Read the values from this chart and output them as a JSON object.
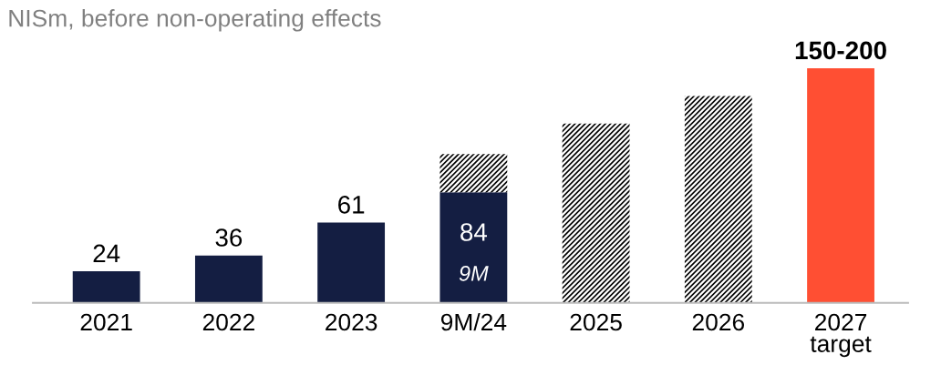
{
  "chart_data": {
    "type": "bar",
    "subtitle": "NISm, before non-operating effects",
    "stacked": true,
    "categories": [
      "2021",
      "2022",
      "2023",
      "9M/24",
      "2025",
      "2026",
      "2027\ntarget"
    ],
    "series": [
      {
        "color": "#141e42",
        "values": [
          24,
          36,
          61,
          84,
          null,
          null,
          null
        ],
        "value_labels": [
          "24",
          "36",
          "61",
          "84",
          null,
          null,
          null
        ]
      },
      {
        "color": "#000000",
        "values": [
          null,
          null,
          null,
          29,
          136,
          157,
          null
        ]
      },
      {
        "color": "#ff4f33",
        "values": [
          null,
          null,
          null,
          null,
          null,
          null,
          178
        ],
        "value_labels": [
          null,
          null,
          null,
          null,
          null,
          null,
          "150-200"
        ]
      }
    ],
    "annotations": [
      "9M"
    ],
    "grid": false,
    "legend": false
  }
}
